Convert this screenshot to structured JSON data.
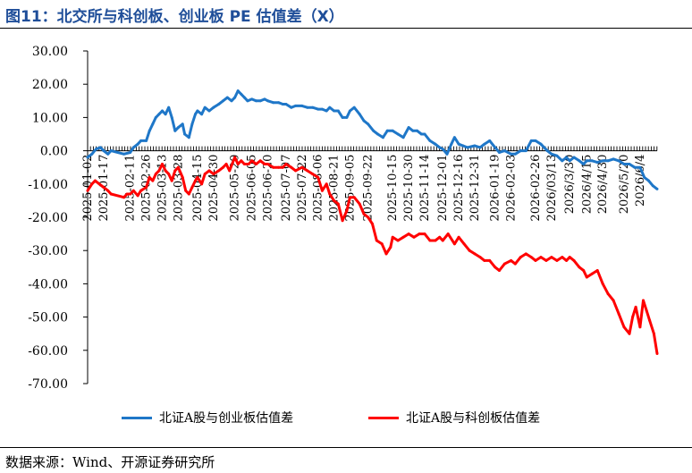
{
  "title": "图11：北交所与科创板、创业板 PE 估值差（X）",
  "source": "数据来源：Wind、开源证券研究所",
  "colors": {
    "blue": "#1f77c8",
    "red": "#ff0000",
    "title": "#1f4e99"
  },
  "chart_data": {
    "type": "line",
    "title": "图11：北交所与科创板、创业板 PE 估值差（X）",
    "xlabel": "",
    "ylabel": "",
    "ylim": [
      -70,
      30
    ],
    "yticks": [
      30,
      20,
      10,
      0,
      -10,
      -20,
      -30,
      -40,
      -50,
      -60,
      -70
    ],
    "ytick_labels": [
      "30.00",
      "20.00",
      "10.00",
      "0.00",
      "-10.00",
      "-20.00",
      "-30.00",
      "-40.00",
      "-50.00",
      "-60.00",
      "-70.00"
    ],
    "xlim": [
      "2025-01-02",
      "2026-06-20"
    ],
    "x_tick_labels": [
      "2025-01-02",
      "2025-01-17",
      "2025-02-11",
      "2025-02-26",
      "2025-03-13",
      "2025-03-28",
      "2025-04-15",
      "2025-04-30",
      "2025-05-20",
      "2025-06-05",
      "2025-06-20",
      "2025-07-07",
      "2025-07-22",
      "2025-08-06",
      "2025-08-21",
      "2025-09-05",
      "2025-09-22",
      "2025-10-15",
      "2025-10-30",
      "2025-11-14",
      "2025-12-01",
      "2025-12-16",
      "2025-12-31",
      "2026-01-19",
      "2026-02-03",
      "2026-02-26",
      "2026/03/13",
      "2026/3/30",
      "2026/4/15",
      "2026/4/30",
      "2026/5/20",
      "2026/6/4"
    ],
    "x_tick_dates": [
      "2025-01-02",
      "2025-01-17",
      "2025-02-11",
      "2025-02-26",
      "2025-03-13",
      "2025-03-28",
      "2025-04-15",
      "2025-04-30",
      "2025-05-20",
      "2025-06-05",
      "2025-06-20",
      "2025-07-07",
      "2025-07-22",
      "2025-08-06",
      "2025-08-21",
      "2025-09-05",
      "2025-09-22",
      "2025-10-15",
      "2025-10-30",
      "2025-11-14",
      "2025-12-01",
      "2025-12-16",
      "2025-12-31",
      "2026-01-19",
      "2026-02-03",
      "2026-02-26",
      "2026-03-13",
      "2026-03-30",
      "2026-04-15",
      "2026-04-30",
      "2026-05-20",
      "2026-06-04"
    ],
    "grid": false,
    "legend": "bottom",
    "series": [
      {
        "name": "北证A股与创业板估值差",
        "color": "#1f77c8",
        "points": [
          [
            "2025-01-02",
            -2
          ],
          [
            "2025-01-06",
            -1
          ],
          [
            "2025-01-10",
            0.5
          ],
          [
            "2025-01-14",
            1
          ],
          [
            "2025-01-17",
            0
          ],
          [
            "2025-01-21",
            -1
          ],
          [
            "2025-01-24",
            0
          ],
          [
            "2025-02-05",
            -1
          ],
          [
            "2025-02-11",
            -0.5
          ],
          [
            "2025-02-14",
            1
          ],
          [
            "2025-02-18",
            2
          ],
          [
            "2025-02-21",
            3
          ],
          [
            "2025-02-26",
            3
          ],
          [
            "2025-03-01",
            6
          ],
          [
            "2025-03-04",
            8
          ],
          [
            "2025-03-07",
            10
          ],
          [
            "2025-03-10",
            11
          ],
          [
            "2025-03-13",
            12
          ],
          [
            "2025-03-16",
            11
          ],
          [
            "2025-03-19",
            13
          ],
          [
            "2025-03-22",
            10
          ],
          [
            "2025-03-25",
            6
          ],
          [
            "2025-03-28",
            7
          ],
          [
            "2025-04-01",
            8
          ],
          [
            "2025-04-03",
            5
          ],
          [
            "2025-04-07",
            4
          ],
          [
            "2025-04-10",
            8
          ],
          [
            "2025-04-13",
            11
          ],
          [
            "2025-04-15",
            12
          ],
          [
            "2025-04-19",
            11
          ],
          [
            "2025-04-22",
            13
          ],
          [
            "2025-04-26",
            12
          ],
          [
            "2025-04-30",
            13
          ],
          [
            "2025-05-05",
            14
          ],
          [
            "2025-05-09",
            15
          ],
          [
            "2025-05-13",
            16
          ],
          [
            "2025-05-17",
            15
          ],
          [
            "2025-05-20",
            16
          ],
          [
            "2025-05-23",
            18
          ],
          [
            "2025-05-26",
            17
          ],
          [
            "2025-05-29",
            16
          ],
          [
            "2025-06-01",
            15
          ],
          [
            "2025-06-05",
            15.5
          ],
          [
            "2025-06-09",
            15
          ],
          [
            "2025-06-13",
            15
          ],
          [
            "2025-06-17",
            15.5
          ],
          [
            "2025-06-20",
            15
          ],
          [
            "2025-06-25",
            14.5
          ],
          [
            "2025-06-30",
            14.5
          ],
          [
            "2025-07-04",
            14
          ],
          [
            "2025-07-07",
            14
          ],
          [
            "2025-07-12",
            13
          ],
          [
            "2025-07-16",
            13.5
          ],
          [
            "2025-07-22",
            13.5
          ],
          [
            "2025-07-27",
            13
          ],
          [
            "2025-08-01",
            13
          ],
          [
            "2025-08-06",
            12.5
          ],
          [
            "2025-08-10",
            12.5
          ],
          [
            "2025-08-14",
            12
          ],
          [
            "2025-08-17",
            13
          ],
          [
            "2025-08-21",
            12
          ],
          [
            "2025-08-25",
            12
          ],
          [
            "2025-08-29",
            10
          ],
          [
            "2025-09-02",
            10
          ],
          [
            "2025-09-05",
            12
          ],
          [
            "2025-09-09",
            13
          ],
          [
            "2025-09-14",
            11
          ],
          [
            "2025-09-18",
            9
          ],
          [
            "2025-09-22",
            8
          ],
          [
            "2025-09-27",
            6
          ],
          [
            "2025-10-01",
            5
          ],
          [
            "2025-10-06",
            4
          ],
          [
            "2025-10-10",
            6
          ],
          [
            "2025-10-15",
            6
          ],
          [
            "2025-10-20",
            5
          ],
          [
            "2025-10-25",
            4
          ],
          [
            "2025-10-30",
            7
          ],
          [
            "2025-11-03",
            6
          ],
          [
            "2025-11-07",
            6
          ],
          [
            "2025-11-11",
            5
          ],
          [
            "2025-11-14",
            5
          ],
          [
            "2025-11-19",
            3
          ],
          [
            "2025-11-24",
            2
          ],
          [
            "2025-11-28",
            1
          ],
          [
            "2025-12-01",
            0.5
          ],
          [
            "2025-12-05",
            -1
          ],
          [
            "2025-12-09",
            2
          ],
          [
            "2025-12-12",
            4
          ],
          [
            "2025-12-16",
            2
          ],
          [
            "2025-12-20",
            1.5
          ],
          [
            "2025-12-24",
            1
          ],
          [
            "2025-12-31",
            1.5
          ],
          [
            "2026-01-05",
            1
          ],
          [
            "2026-01-09",
            2
          ],
          [
            "2026-01-14",
            3
          ],
          [
            "2026-01-19",
            1
          ],
          [
            "2026-01-23",
            -0.5
          ],
          [
            "2026-01-28",
            0
          ],
          [
            "2026-02-03",
            -1
          ],
          [
            "2026-02-07",
            -1
          ],
          [
            "2026-02-12",
            0
          ],
          [
            "2026-02-17",
            0
          ],
          [
            "2026-02-22",
            3
          ],
          [
            "2026-02-26",
            3
          ],
          [
            "2026-03-03",
            2
          ],
          [
            "2026-03-09",
            0
          ],
          [
            "2026-03-13",
            -1
          ],
          [
            "2026-03-18",
            -1.5
          ],
          [
            "2026-03-23",
            -3
          ],
          [
            "2026-03-27",
            -2
          ],
          [
            "2026-03-30",
            -3
          ],
          [
            "2026-04-03",
            -2
          ],
          [
            "2026-04-08",
            -3
          ],
          [
            "2026-04-12",
            -4
          ],
          [
            "2026-04-15",
            -3
          ],
          [
            "2026-04-20",
            -3
          ],
          [
            "2026-04-25",
            -3.5
          ],
          [
            "2026-04-30",
            -3
          ],
          [
            "2026-05-05",
            -3
          ],
          [
            "2026-05-10",
            -2.5
          ],
          [
            "2026-05-15",
            -3
          ],
          [
            "2026-05-20",
            -4
          ],
          [
            "2026-05-25",
            -4
          ],
          [
            "2026-05-30",
            -5
          ],
          [
            "2026-06-04",
            -5
          ],
          [
            "2026-06-08",
            -8
          ],
          [
            "2026-06-12",
            -9
          ],
          [
            "2026-06-16",
            -10.5
          ],
          [
            "2026-06-20",
            -11.5
          ]
        ]
      },
      {
        "name": "北证A股与科创板估值差",
        "color": "#ff0000",
        "points": [
          [
            "2025-01-02",
            -12
          ],
          [
            "2025-01-06",
            -10
          ],
          [
            "2025-01-09",
            -9
          ],
          [
            "2025-01-13",
            -10
          ],
          [
            "2025-01-17",
            -11
          ],
          [
            "2025-01-21",
            -12
          ],
          [
            "2025-01-24",
            -13
          ],
          [
            "2025-02-05",
            -14
          ],
          [
            "2025-02-08",
            -13
          ],
          [
            "2025-02-11",
            -13
          ],
          [
            "2025-02-14",
            -12
          ],
          [
            "2025-02-18",
            -13.5
          ],
          [
            "2025-02-21",
            -12
          ],
          [
            "2025-02-26",
            -11
          ],
          [
            "2025-03-01",
            -8
          ],
          [
            "2025-03-04",
            -9
          ],
          [
            "2025-03-07",
            -7
          ],
          [
            "2025-03-10",
            -6
          ],
          [
            "2025-03-13",
            -4
          ],
          [
            "2025-03-16",
            -6
          ],
          [
            "2025-03-19",
            -7
          ],
          [
            "2025-03-22",
            -9
          ],
          [
            "2025-03-25",
            -6
          ],
          [
            "2025-03-28",
            -5
          ],
          [
            "2025-04-01",
            -8
          ],
          [
            "2025-04-04",
            -12
          ],
          [
            "2025-04-07",
            -13
          ],
          [
            "2025-04-10",
            -11
          ],
          [
            "2025-04-13",
            -9
          ],
          [
            "2025-04-15",
            -8
          ],
          [
            "2025-04-19",
            -10
          ],
          [
            "2025-04-22",
            -7
          ],
          [
            "2025-04-26",
            -6
          ],
          [
            "2025-04-30",
            -7
          ],
          [
            "2025-05-05",
            -6
          ],
          [
            "2025-05-09",
            -5
          ],
          [
            "2025-05-12",
            -4
          ],
          [
            "2025-05-15",
            -6
          ],
          [
            "2025-05-20",
            -2
          ],
          [
            "2025-05-23",
            -4
          ],
          [
            "2025-05-26",
            -3
          ],
          [
            "2025-05-29",
            -4
          ],
          [
            "2025-06-02",
            -4
          ],
          [
            "2025-06-05",
            -3
          ],
          [
            "2025-06-09",
            -4
          ],
          [
            "2025-06-13",
            -3
          ],
          [
            "2025-06-17",
            -4
          ],
          [
            "2025-06-20",
            -4
          ],
          [
            "2025-06-25",
            -5
          ],
          [
            "2025-06-30",
            -5
          ],
          [
            "2025-07-04",
            -5
          ],
          [
            "2025-07-07",
            -4
          ],
          [
            "2025-07-12",
            -5
          ],
          [
            "2025-07-16",
            -6
          ],
          [
            "2025-07-22",
            -5
          ],
          [
            "2025-07-27",
            -6
          ],
          [
            "2025-08-01",
            -7
          ],
          [
            "2025-08-06",
            -8
          ],
          [
            "2025-08-10",
            -12
          ],
          [
            "2025-08-14",
            -10
          ],
          [
            "2025-08-17",
            -13
          ],
          [
            "2025-08-21",
            -15
          ],
          [
            "2025-08-25",
            -16
          ],
          [
            "2025-08-29",
            -21
          ],
          [
            "2025-09-02",
            -18
          ],
          [
            "2025-09-05",
            -14
          ],
          [
            "2025-09-09",
            -14
          ],
          [
            "2025-09-14",
            -16
          ],
          [
            "2025-09-18",
            -19
          ],
          [
            "2025-09-22",
            -20
          ],
          [
            "2025-09-26",
            -22
          ],
          [
            "2025-09-30",
            -27
          ],
          [
            "2025-10-05",
            -28
          ],
          [
            "2025-10-09",
            -31
          ],
          [
            "2025-10-13",
            -29
          ],
          [
            "2025-10-15",
            -26
          ],
          [
            "2025-10-20",
            -27
          ],
          [
            "2025-10-25",
            -26
          ],
          [
            "2025-10-30",
            -25
          ],
          [
            "2025-11-04",
            -26
          ],
          [
            "2025-11-09",
            -25
          ],
          [
            "2025-11-14",
            -25
          ],
          [
            "2025-11-19",
            -27
          ],
          [
            "2025-11-24",
            -27
          ],
          [
            "2025-11-28",
            -26
          ],
          [
            "2025-12-01",
            -27
          ],
          [
            "2025-12-06",
            -25
          ],
          [
            "2025-12-12",
            -28
          ],
          [
            "2025-12-16",
            -26
          ],
          [
            "2025-12-21",
            -28
          ],
          [
            "2025-12-26",
            -30
          ],
          [
            "2025-12-31",
            -31
          ],
          [
            "2026-01-05",
            -32
          ],
          [
            "2026-01-09",
            -33
          ],
          [
            "2026-01-14",
            -33
          ],
          [
            "2026-01-19",
            -35
          ],
          [
            "2026-01-23",
            -36
          ],
          [
            "2026-01-28",
            -34
          ],
          [
            "2026-02-03",
            -33
          ],
          [
            "2026-02-07",
            -34
          ],
          [
            "2026-02-12",
            -32
          ],
          [
            "2026-02-17",
            -31
          ],
          [
            "2026-02-22",
            -32
          ],
          [
            "2026-02-26",
            -33
          ],
          [
            "2026-03-03",
            -32
          ],
          [
            "2026-03-08",
            -33
          ],
          [
            "2026-03-13",
            -32
          ],
          [
            "2026-03-18",
            -33
          ],
          [
            "2026-03-23",
            -32
          ],
          [
            "2026-03-27",
            -33
          ],
          [
            "2026-03-30",
            -32
          ],
          [
            "2026-04-03",
            -33
          ],
          [
            "2026-04-08",
            -35
          ],
          [
            "2026-04-12",
            -36
          ],
          [
            "2026-04-15",
            -38
          ],
          [
            "2026-04-20",
            -37
          ],
          [
            "2026-04-25",
            -36
          ],
          [
            "2026-04-30",
            -40
          ],
          [
            "2026-05-05",
            -43
          ],
          [
            "2026-05-10",
            -45
          ],
          [
            "2026-05-15",
            -49
          ],
          [
            "2026-05-20",
            -53
          ],
          [
            "2026-05-25",
            -55
          ],
          [
            "2026-05-28",
            -50
          ],
          [
            "2026-05-31",
            -47
          ],
          [
            "2026-06-04",
            -53
          ],
          [
            "2026-06-07",
            -45
          ],
          [
            "2026-06-10",
            -48
          ],
          [
            "2026-06-13",
            -51
          ],
          [
            "2026-06-17",
            -55
          ],
          [
            "2026-06-20",
            -61
          ]
        ]
      }
    ]
  }
}
